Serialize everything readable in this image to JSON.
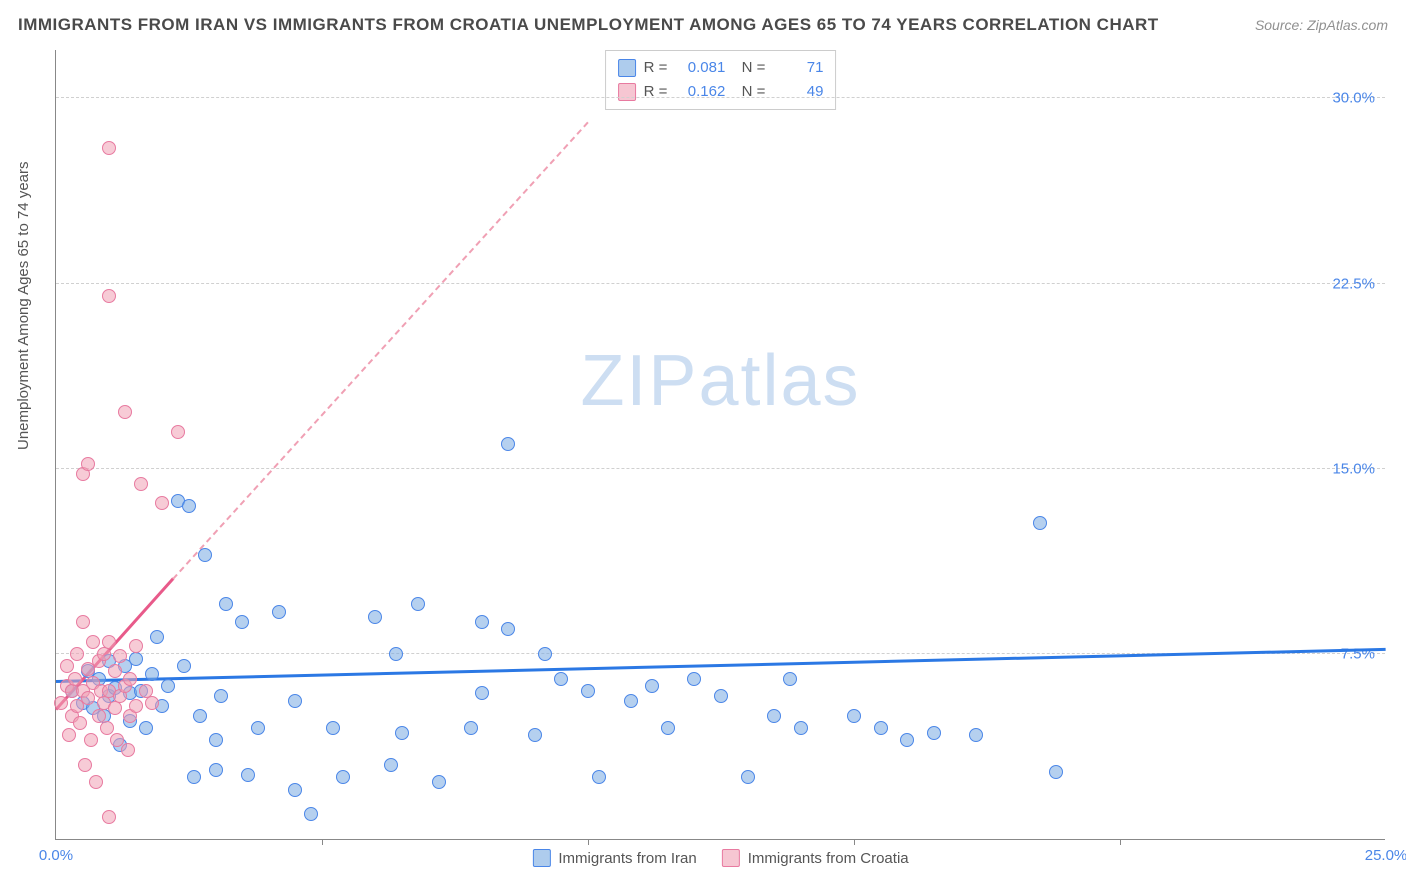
{
  "header": {
    "title": "IMMIGRANTS FROM IRAN VS IMMIGRANTS FROM CROATIA UNEMPLOYMENT AMONG AGES 65 TO 74 YEARS CORRELATION CHART",
    "source": "Source: ZipAtlas.com"
  },
  "watermark": "ZIPatlas",
  "chart": {
    "type": "scatter",
    "ylabel": "Unemployment Among Ages 65 to 74 years",
    "xlim": [
      0,
      25
    ],
    "ylim": [
      0,
      32
    ],
    "xtick_labels": [
      "0.0%",
      "25.0%"
    ],
    "xtick_positions": [
      0,
      25
    ],
    "xtick_minors": [
      5,
      10,
      15,
      20
    ],
    "ytick_labels": [
      "7.5%",
      "15.0%",
      "22.5%",
      "30.0%"
    ],
    "ytick_positions": [
      7.5,
      15,
      22.5,
      30
    ],
    "grid_color": "#d0d0d0",
    "background_color": "#ffffff",
    "marker_radius": 7,
    "series": [
      {
        "name": "Immigrants from Iran",
        "color_fill": "rgba(120,170,225,0.55)",
        "color_stroke": "#4a86e8",
        "R": "0.081",
        "N": "71",
        "trend": {
          "x0": 0,
          "y0": 6.3,
          "x1": 25,
          "y1": 7.6,
          "color": "#2b78e4",
          "width": 3
        },
        "points": [
          [
            0.3,
            6.0
          ],
          [
            0.5,
            5.5
          ],
          [
            0.6,
            6.8
          ],
          [
            0.7,
            5.3
          ],
          [
            0.8,
            6.5
          ],
          [
            1.0,
            7.2
          ],
          [
            1.0,
            5.8
          ],
          [
            1.1,
            6.1
          ],
          [
            1.2,
            3.8
          ],
          [
            1.3,
            7.0
          ],
          [
            1.4,
            5.9
          ],
          [
            1.5,
            7.3
          ],
          [
            1.6,
            6.0
          ],
          [
            1.7,
            4.5
          ],
          [
            1.8,
            6.7
          ],
          [
            1.9,
            8.2
          ],
          [
            2.0,
            5.4
          ],
          [
            2.3,
            13.7
          ],
          [
            2.5,
            13.5
          ],
          [
            2.6,
            2.5
          ],
          [
            2.7,
            5.0
          ],
          [
            2.8,
            11.5
          ],
          [
            3.0,
            2.8
          ],
          [
            3.0,
            4.0
          ],
          [
            3.1,
            5.8
          ],
          [
            3.2,
            9.5
          ],
          [
            3.5,
            8.8
          ],
          [
            3.6,
            2.6
          ],
          [
            3.8,
            4.5
          ],
          [
            4.2,
            9.2
          ],
          [
            4.5,
            2.0
          ],
          [
            4.5,
            5.6
          ],
          [
            4.8,
            1.0
          ],
          [
            5.2,
            4.5
          ],
          [
            5.4,
            2.5
          ],
          [
            6.0,
            9.0
          ],
          [
            6.3,
            3.0
          ],
          [
            6.4,
            7.5
          ],
          [
            6.5,
            4.3
          ],
          [
            6.8,
            9.5
          ],
          [
            7.2,
            2.3
          ],
          [
            7.8,
            4.5
          ],
          [
            8.0,
            5.9
          ],
          [
            8.0,
            8.8
          ],
          [
            8.5,
            16.0
          ],
          [
            8.5,
            8.5
          ],
          [
            9.0,
            4.2
          ],
          [
            9.2,
            7.5
          ],
          [
            9.5,
            6.5
          ],
          [
            10.0,
            6.0
          ],
          [
            10.2,
            2.5
          ],
          [
            10.8,
            5.6
          ],
          [
            11.2,
            6.2
          ],
          [
            11.5,
            4.5
          ],
          [
            12.0,
            6.5
          ],
          [
            12.5,
            5.8
          ],
          [
            13.0,
            2.5
          ],
          [
            13.5,
            5.0
          ],
          [
            13.8,
            6.5
          ],
          [
            14.0,
            4.5
          ],
          [
            15.0,
            5.0
          ],
          [
            15.5,
            4.5
          ],
          [
            16.0,
            4.0
          ],
          [
            16.5,
            4.3
          ],
          [
            17.3,
            4.2
          ],
          [
            18.5,
            12.8
          ],
          [
            18.8,
            2.7
          ],
          [
            0.9,
            5.0
          ],
          [
            1.4,
            4.8
          ],
          [
            2.1,
            6.2
          ],
          [
            2.4,
            7.0
          ]
        ]
      },
      {
        "name": "Immigrants from Croatia",
        "color_fill": "rgba(240,160,180,0.55)",
        "color_stroke": "#e87aa0",
        "R": "0.162",
        "N": "49",
        "trend_solid": {
          "x0": 0,
          "y0": 5.2,
          "x1": 2.2,
          "y1": 10.5,
          "color": "#e85a8a",
          "width": 3
        },
        "trend_dash": {
          "x0": 2.2,
          "y0": 10.5,
          "x1": 10.0,
          "y1": 29.0,
          "color": "#f0a0b4",
          "width": 2
        },
        "points": [
          [
            0.1,
            5.5
          ],
          [
            0.2,
            6.2
          ],
          [
            0.2,
            7.0
          ],
          [
            0.25,
            4.2
          ],
          [
            0.3,
            6.0
          ],
          [
            0.3,
            5.0
          ],
          [
            0.35,
            6.5
          ],
          [
            0.4,
            5.4
          ],
          [
            0.4,
            7.5
          ],
          [
            0.45,
            4.7
          ],
          [
            0.5,
            6.0
          ],
          [
            0.5,
            8.8
          ],
          [
            0.5,
            14.8
          ],
          [
            0.55,
            3.0
          ],
          [
            0.6,
            5.7
          ],
          [
            0.6,
            6.9
          ],
          [
            0.6,
            15.2
          ],
          [
            0.65,
            4.0
          ],
          [
            0.7,
            6.3
          ],
          [
            0.7,
            8.0
          ],
          [
            0.75,
            2.3
          ],
          [
            0.8,
            5.0
          ],
          [
            0.8,
            7.2
          ],
          [
            0.85,
            6.0
          ],
          [
            0.9,
            5.5
          ],
          [
            0.9,
            7.5
          ],
          [
            0.95,
            4.5
          ],
          [
            1.0,
            6.0
          ],
          [
            1.0,
            8.0
          ],
          [
            1.0,
            22.0
          ],
          [
            1.0,
            28.0
          ],
          [
            1.0,
            0.9
          ],
          [
            1.1,
            5.3
          ],
          [
            1.1,
            6.8
          ],
          [
            1.15,
            4.0
          ],
          [
            1.2,
            5.8
          ],
          [
            1.2,
            7.4
          ],
          [
            1.3,
            6.2
          ],
          [
            1.3,
            17.3
          ],
          [
            1.35,
            3.6
          ],
          [
            1.4,
            5.0
          ],
          [
            1.4,
            6.5
          ],
          [
            1.5,
            5.4
          ],
          [
            1.5,
            7.8
          ],
          [
            1.6,
            14.4
          ],
          [
            1.7,
            6.0
          ],
          [
            1.8,
            5.5
          ],
          [
            2.0,
            13.6
          ],
          [
            2.3,
            16.5
          ]
        ]
      }
    ],
    "legend_bottom": [
      {
        "label": "Immigrants from Iran",
        "swatch": "blue"
      },
      {
        "label": "Immigrants from Croatia",
        "swatch": "pink"
      }
    ]
  }
}
